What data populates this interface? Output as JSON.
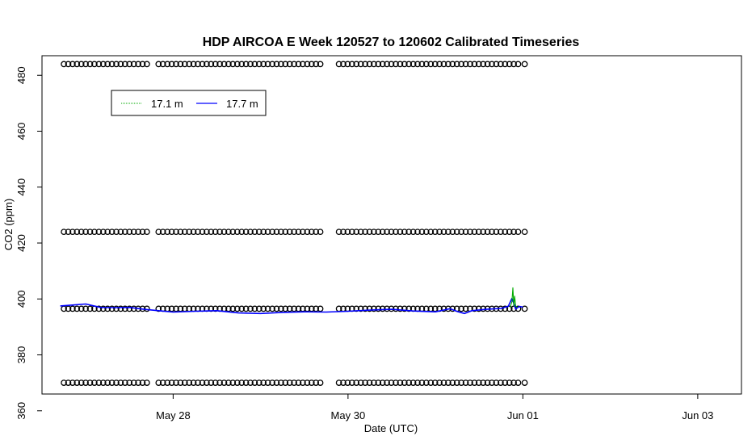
{
  "chart_data": {
    "type": "line",
    "title": "HDP AIRCOA E  Week 120527 to 120602  Calibrated Timeseries",
    "xlabel": "Date (UTC)",
    "ylabel": "CO2 (ppm)",
    "x_axis": {
      "unit": "days",
      "range": [
        "2012-05-26 12:00",
        "2012-06-03 12:00"
      ],
      "ticks": [
        {
          "value": "2012-05-28",
          "label": "May 28"
        },
        {
          "value": "2012-05-30",
          "label": "May 30"
        },
        {
          "value": "2012-06-01",
          "label": "Jun 01"
        },
        {
          "value": "2012-06-03",
          "label": "Jun 03"
        }
      ]
    },
    "y_axis": {
      "range": [
        366,
        487
      ],
      "ticks": [
        360,
        380,
        400,
        420,
        440,
        460,
        480
      ]
    },
    "grid": false,
    "legend": {
      "placement": "top-left",
      "entries": [
        {
          "label": "17.1 m",
          "color": "#00aa00"
        },
        {
          "label": "17.7 m",
          "color": "#0000ff"
        }
      ]
    },
    "calibration_markers": {
      "style": "open circle",
      "color": "#000000",
      "levels": [
        370,
        396.5,
        424,
        484
      ],
      "segments": [
        {
          "start": "2012-05-26 18:00",
          "end": "2012-05-27 17:30"
        },
        {
          "start": "2012-05-27 20:00",
          "end": "2012-05-29 17:00"
        },
        {
          "start": "2012-05-29 21:30",
          "end": "2012-05-31 23:30"
        },
        {
          "start": "2012-06-01 00:30",
          "end": "2012-06-01 00:30"
        }
      ],
      "interval_hours": 1.2
    },
    "series": [
      {
        "name": "17.1 m",
        "color": "#00aa00",
        "points": [
          [
            "2012-05-31 20:30",
            397.0
          ],
          [
            "2012-05-31 21:00",
            399.0
          ],
          [
            "2012-05-31 21:15",
            404.0
          ],
          [
            "2012-05-31 21:30",
            397.5
          ],
          [
            "2012-05-31 21:45",
            401.0
          ],
          [
            "2012-05-31 22:00",
            397.5
          ],
          [
            "2012-05-31 22:30",
            397.0
          ]
        ]
      },
      {
        "name": "17.7 m",
        "color": "#0000ff",
        "points": [
          [
            "2012-05-26 17:00",
            397.5
          ],
          [
            "2012-05-26 20:00",
            397.8
          ],
          [
            "2012-05-27 00:00",
            398.2
          ],
          [
            "2012-05-27 04:00",
            397.0
          ],
          [
            "2012-05-27 08:00",
            396.9
          ],
          [
            "2012-05-27 12:00",
            397.0
          ],
          [
            "2012-05-27 16:00",
            396.3
          ],
          [
            "2012-05-27 20:00",
            395.8
          ],
          [
            "2012-05-28 00:00",
            395.3
          ],
          [
            "2012-05-28 06:00",
            395.6
          ],
          [
            "2012-05-28 12:00",
            395.8
          ],
          [
            "2012-05-28 18:00",
            395.0
          ],
          [
            "2012-05-29 00:00",
            394.8
          ],
          [
            "2012-05-29 06:00",
            395.2
          ],
          [
            "2012-05-29 12:00",
            395.4
          ],
          [
            "2012-05-29 18:00",
            395.3
          ],
          [
            "2012-05-30 00:00",
            395.6
          ],
          [
            "2012-05-30 06:00",
            396.0
          ],
          [
            "2012-05-30 12:00",
            396.3
          ],
          [
            "2012-05-30 18:00",
            395.7
          ],
          [
            "2012-05-31 00:00",
            395.4
          ],
          [
            "2012-05-31 04:00",
            396.5
          ],
          [
            "2012-05-31 06:00",
            395.5
          ],
          [
            "2012-05-31 08:00",
            394.8
          ],
          [
            "2012-05-31 10:00",
            395.8
          ],
          [
            "2012-05-31 14:00",
            396.3
          ],
          [
            "2012-05-31 18:00",
            396.6
          ],
          [
            "2012-05-31 20:00",
            397.4
          ],
          [
            "2012-05-31 21:00",
            400.2
          ],
          [
            "2012-05-31 21:30",
            398.5
          ],
          [
            "2012-05-31 22:00",
            396.4
          ],
          [
            "2012-05-31 23:00",
            397.3
          ],
          [
            "2012-06-01 00:00",
            397.1
          ]
        ]
      }
    ]
  }
}
